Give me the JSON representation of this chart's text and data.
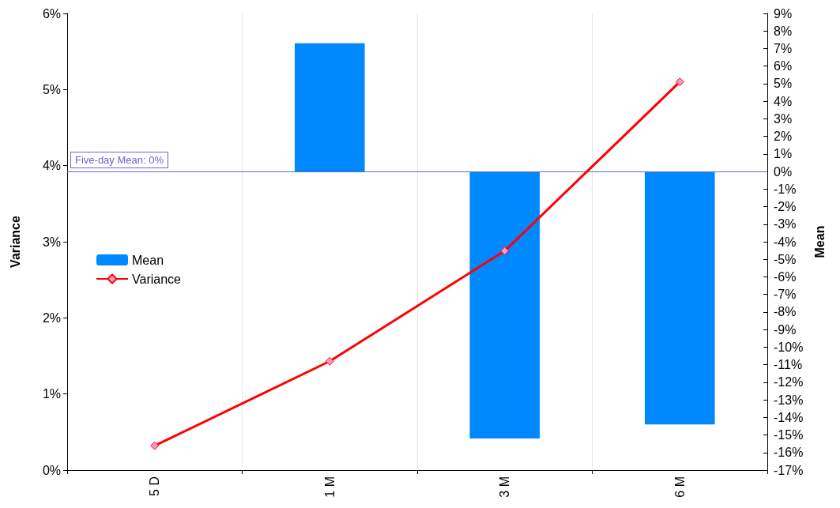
{
  "chart_data": {
    "type": "bar",
    "categories": [
      "5 D",
      "1 M",
      "3 M",
      "6 M"
    ],
    "ylabel": "Variance",
    "y2label": "Mean",
    "series": [
      {
        "name": "Mean",
        "axis": "y2",
        "color": "#0088ff",
        "values": [
          0,
          7.3,
          -15.2,
          -14.4
        ]
      },
      {
        "name": "Variance",
        "type": "line",
        "color": "#ff0000",
        "marker": "diamond",
        "values": [
          0.32,
          1.43,
          2.88,
          5.1
        ]
      }
    ],
    "ylim": [
      0,
      6
    ],
    "yticks": [
      {
        "value": 0,
        "label": "0%"
      },
      {
        "value": 1,
        "label": "1%"
      },
      {
        "value": 2,
        "label": "2%"
      },
      {
        "value": 3,
        "label": "3%"
      },
      {
        "value": 4,
        "label": "4%"
      },
      {
        "value": 5,
        "label": "5%"
      },
      {
        "value": 6,
        "label": "6%"
      }
    ],
    "y2lim": [
      -17,
      9
    ],
    "y2ticks": [
      {
        "value": -17,
        "label": "-17%"
      },
      {
        "value": -16,
        "label": "-16%"
      },
      {
        "value": -15,
        "label": "-15%"
      },
      {
        "value": -14,
        "label": "-14%"
      },
      {
        "value": -13,
        "label": "-13%"
      },
      {
        "value": -12,
        "label": "-12%"
      },
      {
        "value": -11,
        "label": "-11%"
      },
      {
        "value": -10,
        "label": "-10%"
      },
      {
        "value": -9,
        "label": "-9%"
      },
      {
        "value": -8,
        "label": "-8%"
      },
      {
        "value": -7,
        "label": "-7%"
      },
      {
        "value": -6,
        "label": "-6%"
      },
      {
        "value": -5,
        "label": "-5%"
      },
      {
        "value": -4,
        "label": "-4%"
      },
      {
        "value": -3,
        "label": "-3%"
      },
      {
        "value": -2,
        "label": "-2%"
      },
      {
        "value": -1,
        "label": "-1%"
      },
      {
        "value": 0,
        "label": "0%"
      },
      {
        "value": 1,
        "label": "1%"
      },
      {
        "value": 2,
        "label": "2%"
      },
      {
        "value": 3,
        "label": "3%"
      },
      {
        "value": 4,
        "label": "4%"
      },
      {
        "value": 5,
        "label": "5%"
      },
      {
        "value": 6,
        "label": "6%"
      },
      {
        "value": 7,
        "label": "7%"
      },
      {
        "value": 8,
        "label": "8%"
      },
      {
        "value": 9,
        "label": "9%"
      }
    ],
    "ref_lines": [
      {
        "axis": "y2",
        "value": 0,
        "label": "Five-day Mean: 0%",
        "color": "#6666cc"
      }
    ],
    "grid": "x",
    "legend": "left"
  }
}
